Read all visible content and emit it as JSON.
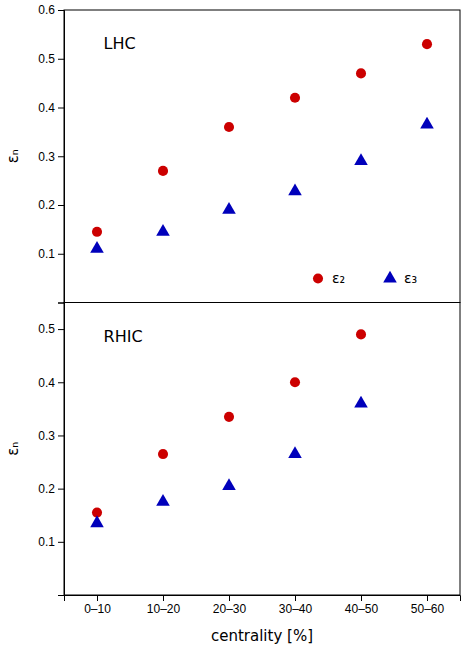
{
  "chart_data": [
    {
      "type": "scatter",
      "annotation": "LHC",
      "categories": [
        "0–10",
        "10–20",
        "20–30",
        "30–40",
        "40–50",
        "50–60"
      ],
      "series": [
        {
          "name": "ε₂",
          "color": "#cc0000",
          "marker": "circle",
          "values": [
            0.145,
            0.27,
            0.36,
            0.42,
            0.47,
            0.53
          ]
        },
        {
          "name": "ε₃",
          "color": "#0000bb",
          "marker": "triangle",
          "values": [
            0.11,
            0.145,
            0.19,
            0.228,
            0.29,
            0.365
          ]
        }
      ],
      "ylabel": "εₙ",
      "ylim": [
        0,
        0.6
      ],
      "yticks": [
        0.1,
        0.2,
        0.3,
        0.4,
        0.5,
        0.6
      ],
      "legend": "lower right",
      "tick_labels": "y"
    },
    {
      "type": "scatter",
      "annotation": "RHIC",
      "categories": [
        "0–10",
        "10–20",
        "20–30",
        "30–40",
        "40–50",
        "50–60"
      ],
      "series": [
        {
          "name": "ε₂",
          "color": "#cc0000",
          "marker": "circle",
          "values": [
            0.155,
            0.265,
            0.335,
            0.4,
            0.49,
            null
          ]
        },
        {
          "name": "ε₃",
          "color": "#0000bb",
          "marker": "triangle",
          "values": [
            0.135,
            0.175,
            0.205,
            0.265,
            0.36,
            null
          ]
        }
      ],
      "xlabel": "centrality [%]",
      "ylabel": "εₙ",
      "ylim": [
        0,
        0.55
      ],
      "yticks": [
        0.1,
        0.2,
        0.3,
        0.4,
        0.5
      ]
    }
  ]
}
